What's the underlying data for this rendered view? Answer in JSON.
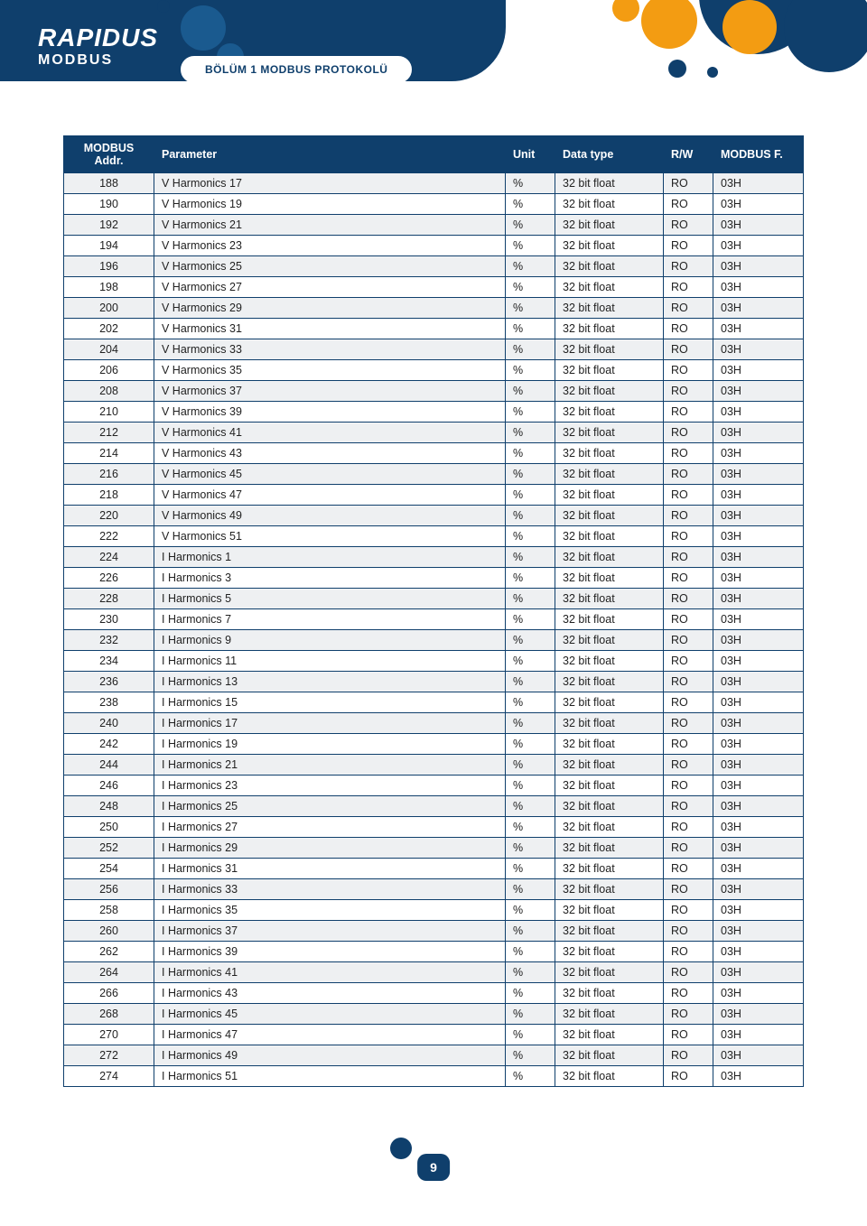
{
  "header": {
    "brand": "RAPIDUS",
    "sub": "MODBUS",
    "section": "BÖLÜM 1 MODBUS PROTOKOLÜ"
  },
  "table": {
    "columns": [
      "MODBUS Addr.",
      "Parameter",
      "Unit",
      "Data type",
      "R/W",
      "MODBUS F."
    ],
    "col_classes": [
      "col-addr",
      "col-param",
      "col-unit",
      "col-dtype",
      "col-rw",
      "col-mf"
    ],
    "rows": [
      [
        "188",
        "V Harmonics 17",
        "%",
        "32 bit float",
        "RO",
        "03H"
      ],
      [
        "190",
        "V Harmonics 19",
        "%",
        "32 bit float",
        "RO",
        "03H"
      ],
      [
        "192",
        "V Harmonics 21",
        "%",
        "32 bit float",
        "RO",
        "03H"
      ],
      [
        "194",
        "V Harmonics 23",
        "%",
        "32 bit float",
        "RO",
        "03H"
      ],
      [
        "196",
        "V Harmonics 25",
        "%",
        "32 bit float",
        "RO",
        "03H"
      ],
      [
        "198",
        "V Harmonics 27",
        "%",
        "32 bit float",
        "RO",
        "03H"
      ],
      [
        "200",
        "V Harmonics 29",
        "%",
        "32 bit float",
        "RO",
        "03H"
      ],
      [
        "202",
        "V Harmonics 31",
        "%",
        "32 bit float",
        "RO",
        "03H"
      ],
      [
        "204",
        "V Harmonics 33",
        "%",
        "32 bit float",
        "RO",
        "03H"
      ],
      [
        "206",
        "V Harmonics 35",
        "%",
        "32 bit float",
        "RO",
        "03H"
      ],
      [
        "208",
        "V Harmonics 37",
        "%",
        "32 bit float",
        "RO",
        "03H"
      ],
      [
        "210",
        "V Harmonics 39",
        "%",
        "32 bit float",
        "RO",
        "03H"
      ],
      [
        "212",
        "V Harmonics 41",
        "%",
        "32 bit float",
        "RO",
        "03H"
      ],
      [
        "214",
        "V Harmonics 43",
        "%",
        "32 bit float",
        "RO",
        "03H"
      ],
      [
        "216",
        "V Harmonics 45",
        "%",
        "32 bit float",
        "RO",
        "03H"
      ],
      [
        "218",
        "V Harmonics 47",
        "%",
        "32 bit float",
        "RO",
        "03H"
      ],
      [
        "220",
        "V Harmonics 49",
        "%",
        "32 bit float",
        "RO",
        "03H"
      ],
      [
        "222",
        "V Harmonics 51",
        "%",
        "32 bit float",
        "RO",
        "03H"
      ],
      [
        "224",
        "I Harmonics 1",
        "%",
        "32 bit float",
        "RO",
        "03H"
      ],
      [
        "226",
        "I Harmonics 3",
        "%",
        "32 bit float",
        "RO",
        "03H"
      ],
      [
        "228",
        "I Harmonics 5",
        "%",
        "32 bit float",
        "RO",
        "03H"
      ],
      [
        "230",
        "I Harmonics 7",
        "%",
        "32 bit float",
        "RO",
        "03H"
      ],
      [
        "232",
        "I Harmonics 9",
        "%",
        "32 bit float",
        "RO",
        "03H"
      ],
      [
        "234",
        "I Harmonics 11",
        "%",
        "32 bit float",
        "RO",
        "03H"
      ],
      [
        "236",
        "I Harmonics 13",
        "%",
        "32 bit float",
        "RO",
        "03H"
      ],
      [
        "238",
        "I Harmonics 15",
        "%",
        "32 bit float",
        "RO",
        "03H"
      ],
      [
        "240",
        "I Harmonics 17",
        "%",
        "32 bit float",
        "RO",
        "03H"
      ],
      [
        "242",
        "I Harmonics 19",
        "%",
        "32 bit float",
        "RO",
        "03H"
      ],
      [
        "244",
        "I Harmonics 21",
        "%",
        "32 bit float",
        "RO",
        "03H"
      ],
      [
        "246",
        "I Harmonics 23",
        "%",
        "32 bit float",
        "RO",
        "03H"
      ],
      [
        "248",
        "I Harmonics 25",
        "%",
        "32 bit float",
        "RO",
        "03H"
      ],
      [
        "250",
        "I Harmonics 27",
        "%",
        "32 bit float",
        "RO",
        "03H"
      ],
      [
        "252",
        "I Harmonics 29",
        "%",
        "32 bit float",
        "RO",
        "03H"
      ],
      [
        "254",
        "I Harmonics 31",
        "%",
        "32 bit float",
        "RO",
        "03H"
      ],
      [
        "256",
        "I Harmonics 33",
        "%",
        "32 bit float",
        "RO",
        "03H"
      ],
      [
        "258",
        "I Harmonics 35",
        "%",
        "32 bit float",
        "RO",
        "03H"
      ],
      [
        "260",
        "I Harmonics 37",
        "%",
        "32 bit float",
        "RO",
        "03H"
      ],
      [
        "262",
        "I Harmonics 39",
        "%",
        "32 bit float",
        "RO",
        "03H"
      ],
      [
        "264",
        "I Harmonics 41",
        "%",
        "32 bit float",
        "RO",
        "03H"
      ],
      [
        "266",
        "I Harmonics 43",
        "%",
        "32 bit float",
        "RO",
        "03H"
      ],
      [
        "268",
        "I Harmonics 45",
        "%",
        "32 bit float",
        "RO",
        "03H"
      ],
      [
        "270",
        "I Harmonics 47",
        "%",
        "32 bit float",
        "RO",
        "03H"
      ],
      [
        "272",
        "I Harmonics 49",
        "%",
        "32 bit float",
        "RO",
        "03H"
      ],
      [
        "274",
        "I Harmonics 51",
        "%",
        "32 bit float",
        "RO",
        "03H"
      ]
    ]
  },
  "footer": {
    "page_number": "9"
  },
  "colors": {
    "primary": "#0f3f6c",
    "primary_light": "#1a5a8f",
    "accent": "#f39c12",
    "row_alt": "#eef0f2"
  }
}
